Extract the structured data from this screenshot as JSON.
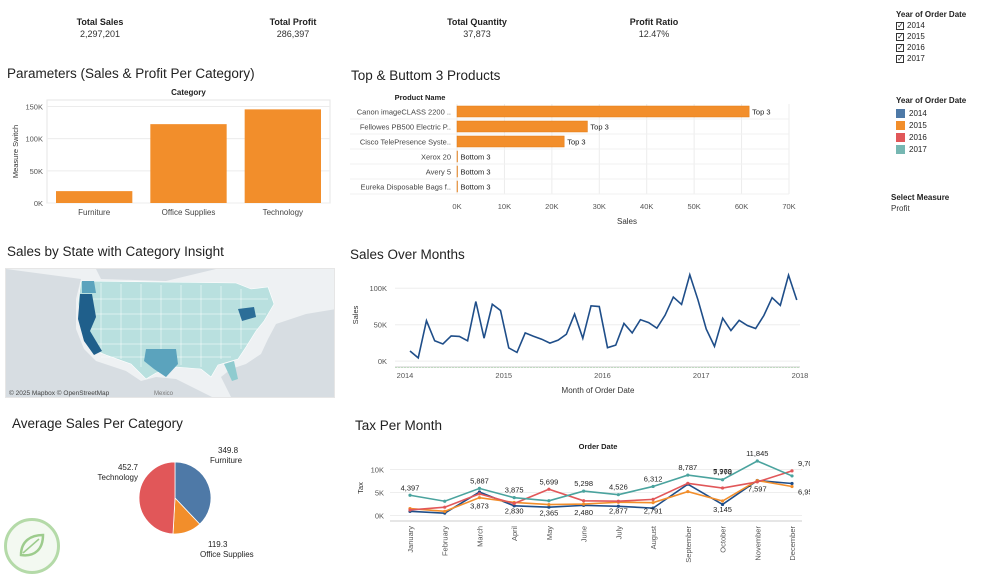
{
  "kpis": [
    {
      "label": "Total Sales",
      "value": "2,297,201"
    },
    {
      "label": "Total Profit",
      "value": "286,397"
    },
    {
      "label": "Total Quantity",
      "value": "37,873"
    },
    {
      "label": "Profit Ratio",
      "value": "12.47%"
    }
  ],
  "filters": {
    "year_filter": {
      "title": "Year of Order Date",
      "options": [
        {
          "label": "2014",
          "checked": true
        },
        {
          "label": "2015",
          "checked": true
        },
        {
          "label": "2016",
          "checked": true
        },
        {
          "label": "2017",
          "checked": true
        }
      ]
    },
    "year_legend": {
      "title": "Year of Order Date",
      "items": [
        {
          "label": "2014",
          "color": "#4e79a7"
        },
        {
          "label": "2015",
          "color": "#f28e2b"
        },
        {
          "label": "2016",
          "color": "#e15759"
        },
        {
          "label": "2017",
          "color": "#76b7b2"
        }
      ]
    },
    "measure": {
      "title": "Select Measure",
      "value": "Profit"
    }
  },
  "map": {
    "title": "Sales by State with Category Insight",
    "attribution": "© 2025 Mapbox © OpenStreetMap",
    "label_mexico": "Mexico"
  },
  "chart_data": [
    {
      "id": "category",
      "type": "bar",
      "title": "Parameters (Sales & Profit Per Category)",
      "header": "Category",
      "ylabel": "Measure Switch",
      "xlabel": "",
      "categories": [
        "Furniture",
        "Office Supplies",
        "Technology"
      ],
      "values": [
        18451,
        122491,
        145455
      ],
      "ylim": [
        0,
        160000
      ],
      "yticks": [
        0,
        50000,
        100000,
        150000
      ],
      "ytick_labels": [
        "0K",
        "50K",
        "100K",
        "150K"
      ],
      "color": "#f28e2b",
      "grid": true
    },
    {
      "id": "products",
      "type": "bar",
      "orientation": "horizontal",
      "title": "Top & Buttom 3 Products",
      "header": "Product Name",
      "xlabel": "Sales",
      "categories": [
        "Canon imageCLASS 2200 ..",
        "Fellowes PB500 Electric P..",
        "Cisco TelePresence Syste..",
        "Xerox 20",
        "Avery 5",
        "Eureka Disposable Bags f.."
      ],
      "values": [
        61600,
        27500,
        22600,
        6.5,
        5.8,
        1.6
      ],
      "labels": [
        "Top 3",
        "Top 3",
        "Top 3",
        "Bottom 3",
        "Bottom 3",
        "Bottom 3"
      ],
      "xlim": [
        0,
        70000
      ],
      "xticks": [
        0,
        10000,
        20000,
        30000,
        40000,
        50000,
        60000,
        70000
      ],
      "xtick_labels": [
        "0K",
        "10K",
        "20K",
        "30K",
        "40K",
        "50K",
        "60K",
        "70K"
      ],
      "color": "#f28e2b",
      "grid": true
    },
    {
      "id": "monthly_sales",
      "type": "line",
      "title": "Sales Over Months",
      "xlabel": "Month of Order Date",
      "ylabel": "Sales",
      "x_start": "2014-01",
      "values": [
        14000,
        4500,
        55500,
        28000,
        23600,
        34600,
        33900,
        27900,
        81800,
        31500,
        78000,
        69500,
        18200,
        12000,
        38700,
        34200,
        30100,
        24800,
        28800,
        36900,
        64600,
        31400,
        75900,
        74900,
        18500,
        22000,
        51700,
        38800,
        56900,
        52900,
        45300,
        63100,
        87900,
        77800,
        118400,
        83800,
        43900,
        20300,
        58900,
        42000,
        56000,
        48900,
        44800,
        62600,
        87000,
        76500,
        117900,
        83800
      ],
      "ylim": [
        -8000,
        125000
      ],
      "yticks": [
        0,
        50000,
        100000
      ],
      "ytick_labels": [
        "0K",
        "50K",
        "100K"
      ],
      "xticks": [
        "2014",
        "2015",
        "2016",
        "2017",
        "2018"
      ],
      "line_color": "#1f4e89",
      "baseline_color": "#6bd36b",
      "grid": true
    },
    {
      "id": "category_pie",
      "type": "pie",
      "title": "Average Sales Per Category",
      "slices": [
        {
          "label": "Furniture",
          "value": 349.8,
          "color": "#4e79a7"
        },
        {
          "label": "Office Supplies",
          "value": 119.3,
          "color": "#f28e2b"
        },
        {
          "label": "Technology",
          "value": 452.7,
          "color": "#e15759"
        }
      ]
    },
    {
      "id": "tax",
      "type": "line",
      "title": "Tax Per Month",
      "header": "Order Date",
      "ylabel": "Tax",
      "categories": [
        "January",
        "February",
        "March",
        "April",
        "May",
        "June",
        "July",
        "August",
        "September",
        "October",
        "November",
        "December"
      ],
      "series": [
        {
          "name": "2014",
          "color": "#1f4e89",
          "values": [
            900,
            500,
            5100,
            2100,
            1800,
            2200,
            2000,
            1600,
            6800,
            2400,
            7600,
            6955
          ]
        },
        {
          "name": "2015",
          "color": "#f28e2b",
          "values": [
            1500,
            900,
            3873,
            2830,
            2365,
            2480,
            2877,
            2791,
            5200,
            3145,
            7597,
            6300
          ]
        },
        {
          "name": "2016",
          "color": "#e15759",
          "values": [
            1200,
            1800,
            4700,
            2600,
            5699,
            3200,
            3100,
            3500,
            7000,
            5969,
            7300,
            9700
          ]
        },
        {
          "name": "2017",
          "color": "#4aa39e",
          "values": [
            4397,
            3100,
            5887,
            3875,
            3200,
            5298,
            4526,
            6312,
            8787,
            7778,
            11845,
            8600
          ]
        }
      ],
      "annotations": [
        {
          "month": "January",
          "text": "4,397"
        },
        {
          "month": "March",
          "text": "5,887"
        },
        {
          "month": "March",
          "text": "3,873"
        },
        {
          "month": "April",
          "text": "2,830"
        },
        {
          "month": "April",
          "text": "3,875"
        },
        {
          "month": "May",
          "text": "5,699"
        },
        {
          "month": "May",
          "text": "2,365"
        },
        {
          "month": "June",
          "text": "5,298"
        },
        {
          "month": "June",
          "text": "2,480"
        },
        {
          "month": "July",
          "text": "4,526"
        },
        {
          "month": "July",
          "text": "2,877"
        },
        {
          "month": "August",
          "text": "6,312"
        },
        {
          "month": "August",
          "text": "2,791"
        },
        {
          "month": "September",
          "text": "8,787"
        },
        {
          "month": "October",
          "text": "7,778"
        },
        {
          "month": "October",
          "text": "5,969"
        },
        {
          "month": "October",
          "text": "3,145"
        },
        {
          "month": "November",
          "text": "11,845"
        },
        {
          "month": "November",
          "text": "7,597"
        },
        {
          "month": "December",
          "text": "9,700"
        },
        {
          "month": "December",
          "text": "6,955"
        }
      ],
      "ylim": [
        -1200,
        12500
      ],
      "yticks": [
        0,
        5000,
        10000
      ],
      "ytick_labels": [
        "0K",
        "5K",
        "10K"
      ],
      "grid": true
    }
  ]
}
